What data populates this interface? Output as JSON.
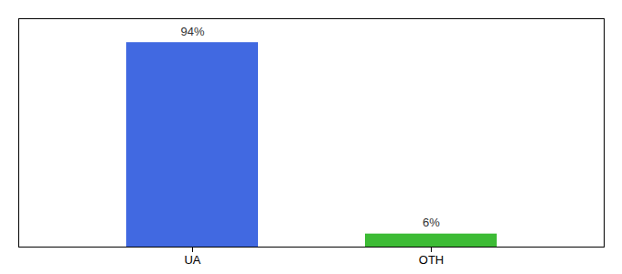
{
  "chart_data": {
    "type": "bar",
    "categories": [
      "UA",
      "OTH"
    ],
    "values": [
      94,
      6
    ],
    "value_labels": [
      "94%",
      "6%"
    ],
    "colors": [
      "#4169e1",
      "#3dbb35"
    ],
    "ylim": [
      0,
      105
    ],
    "data_labels": true,
    "tick_labels": "x"
  }
}
